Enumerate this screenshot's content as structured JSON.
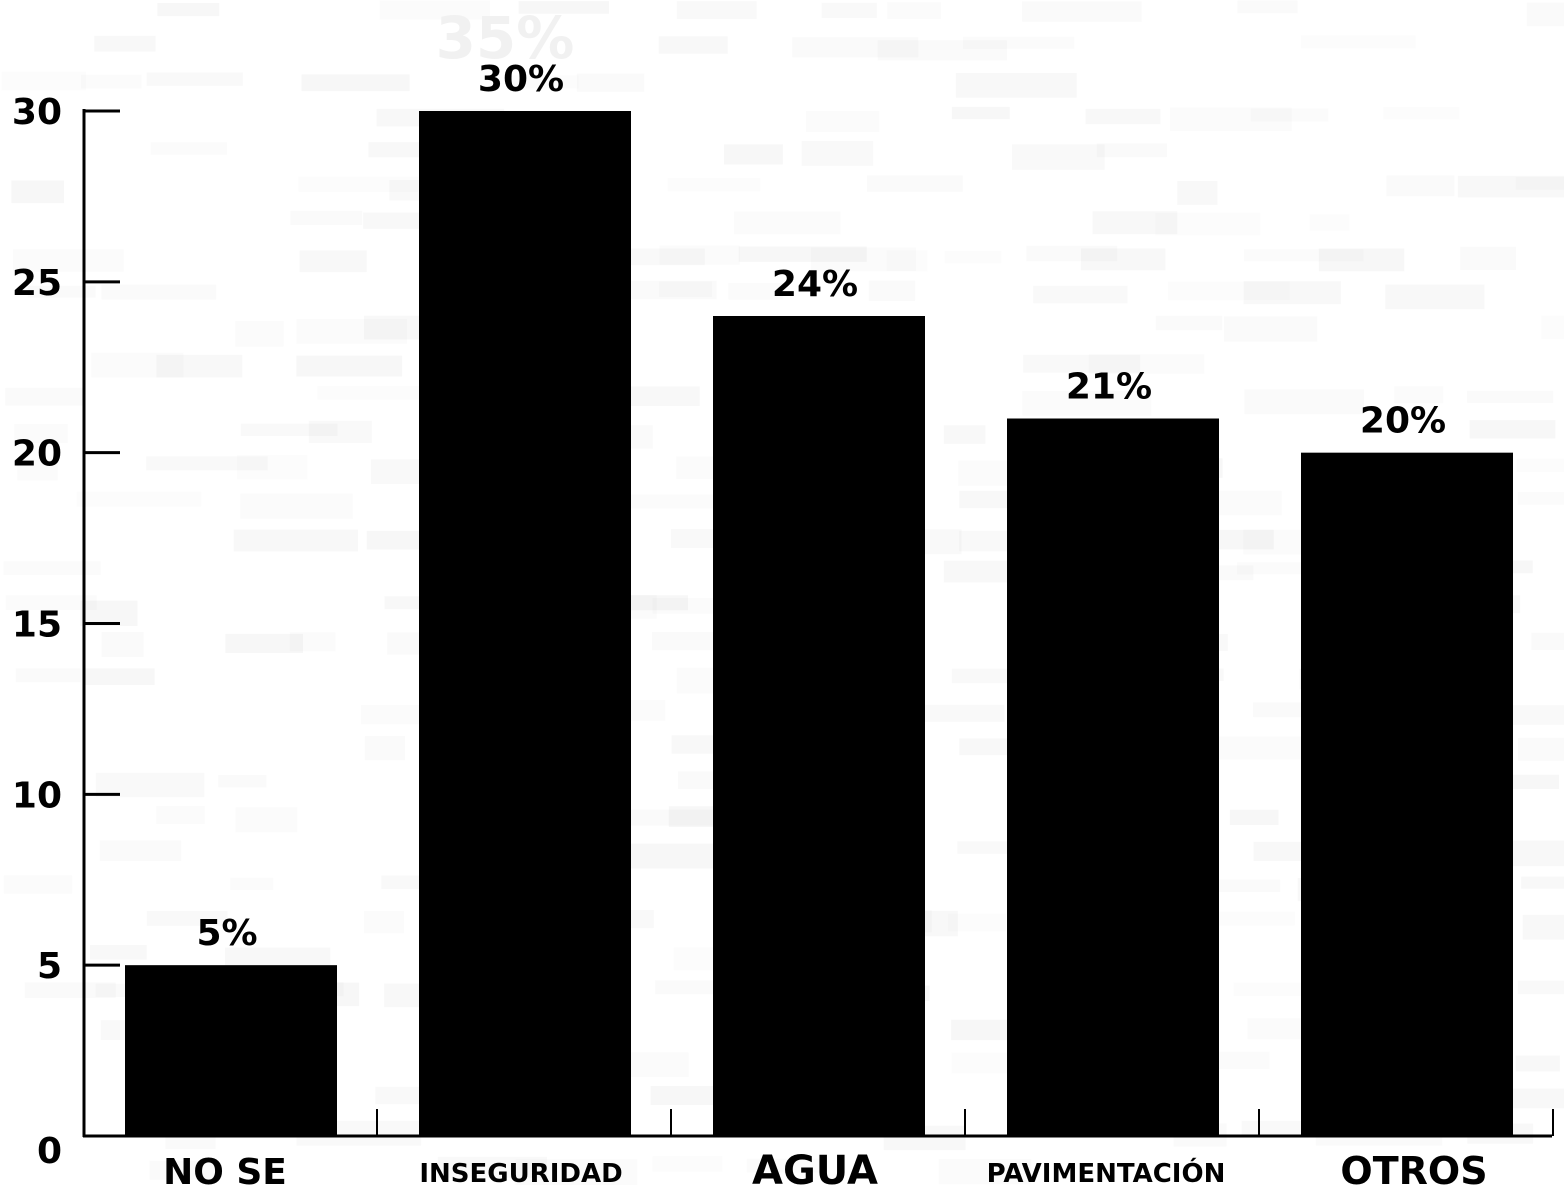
{
  "chart_data": {
    "type": "bar",
    "categories": [
      "NO SE",
      "INSEGURIDAD",
      "AGUA",
      "PAVIMENTACIÓN",
      "OTROS"
    ],
    "values": [
      5,
      30,
      24,
      21,
      20
    ],
    "data_labels": [
      "5%",
      "30%",
      "24%",
      "21%",
      "20%"
    ],
    "y_ticks": [
      "0",
      "5",
      "10",
      "15",
      "20",
      "25",
      "30"
    ],
    "ylim": [
      0,
      30
    ],
    "background_text": "35%",
    "grid": false,
    "legend": "none",
    "colors": {
      "bar": "#000000",
      "axis": "#000000",
      "background": "#ffffff",
      "background_text": "#f1f1f1"
    }
  }
}
